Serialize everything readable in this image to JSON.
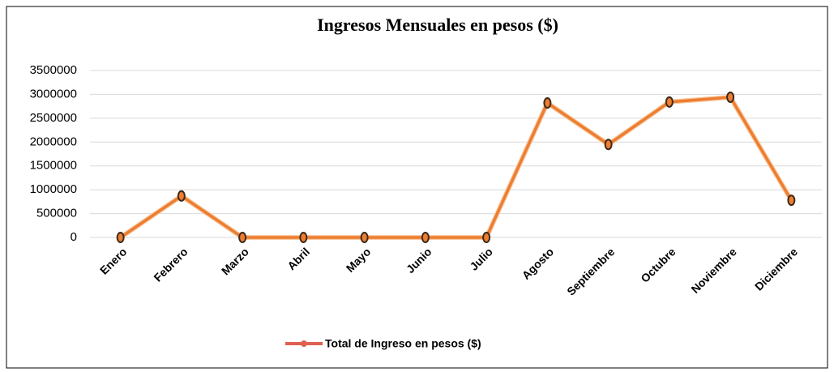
{
  "chart_data": {
    "type": "line",
    "title": "Ingresos Mensuales en pesos ($)",
    "categories": [
      "Enero",
      "Febrero",
      "Marzo",
      "Abril",
      "Mayo",
      "Junio",
      "Julio",
      "Agosto",
      "Septiembre",
      "Octubre",
      "Noviembre",
      "Diciembre"
    ],
    "series": [
      {
        "name": "Total de Ingreso en pesos ($)",
        "color": "#ed7d31",
        "values": [
          0,
          870000,
          0,
          0,
          0,
          0,
          0,
          2820000,
          1950000,
          2840000,
          2940000,
          780000
        ]
      }
    ],
    "ylim": [
      0,
      3500000
    ],
    "yticks": [
      0,
      500000,
      1000000,
      1500000,
      2000000,
      2500000,
      3000000,
      3500000
    ],
    "grid": true,
    "legend": "bottom"
  }
}
